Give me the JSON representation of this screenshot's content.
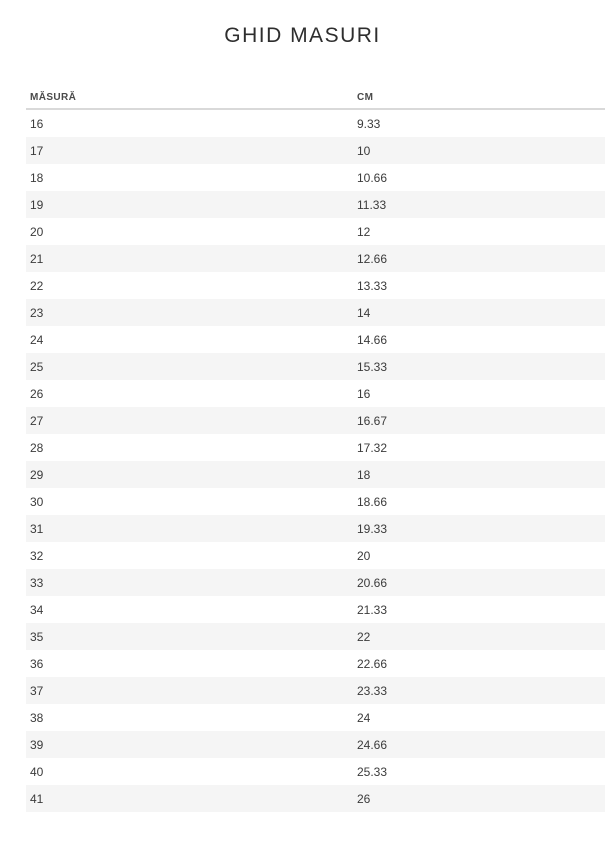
{
  "page": {
    "title": "GHID MASURI"
  },
  "table": {
    "headers": [
      "MĂSURĂ",
      "CM"
    ],
    "rows": [
      {
        "size": "16",
        "cm": "9.33"
      },
      {
        "size": "17",
        "cm": "10"
      },
      {
        "size": "18",
        "cm": "10.66"
      },
      {
        "size": "19",
        "cm": "11.33"
      },
      {
        "size": "20",
        "cm": "12"
      },
      {
        "size": "21",
        "cm": "12.66"
      },
      {
        "size": "22",
        "cm": "13.33"
      },
      {
        "size": "23",
        "cm": "14"
      },
      {
        "size": "24",
        "cm": "14.66"
      },
      {
        "size": "25",
        "cm": "15.33"
      },
      {
        "size": "26",
        "cm": "16"
      },
      {
        "size": "27",
        "cm": "16.67"
      },
      {
        "size": "28",
        "cm": "17.32"
      },
      {
        "size": "29",
        "cm": "18"
      },
      {
        "size": "30",
        "cm": "18.66"
      },
      {
        "size": "31",
        "cm": "19.33"
      },
      {
        "size": "32",
        "cm": "20"
      },
      {
        "size": "33",
        "cm": "20.66"
      },
      {
        "size": "34",
        "cm": "21.33"
      },
      {
        "size": "35",
        "cm": "22"
      },
      {
        "size": "36",
        "cm": "22.66"
      },
      {
        "size": "37",
        "cm": "23.33"
      },
      {
        "size": "38",
        "cm": "24"
      },
      {
        "size": "39",
        "cm": "24.66"
      },
      {
        "size": "40",
        "cm": "25.33"
      },
      {
        "size": "41",
        "cm": "26"
      }
    ]
  },
  "colors": {
    "stripe": "#f5f5f5",
    "header_border": "#d9d9d9",
    "title_text": "#2e2e2e",
    "cell_text": "#3b3b3b",
    "header_text": "#4a4a4a"
  }
}
